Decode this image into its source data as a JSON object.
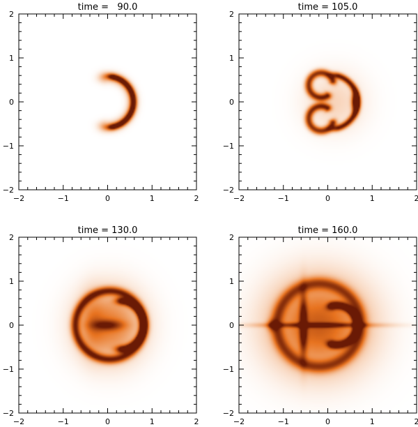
{
  "figure": {
    "colormap": {
      "low": "#ffffff",
      "mid": "#e8731f",
      "high": "#6a1a05"
    }
  },
  "chart_data": [
    {
      "type": "heatmap",
      "title": "time =   90.0",
      "xlim": [
        -2,
        2
      ],
      "ylim": [
        -2,
        2
      ],
      "x_major_ticks": [
        -2,
        -1,
        0,
        1,
        2
      ],
      "y_major_ticks": [
        -2,
        -1,
        0,
        1,
        2
      ],
      "tick_labels_x": [
        "−2",
        "−1",
        "0",
        "1",
        "2"
      ],
      "tick_labels_y": [
        "−2",
        "−1",
        "0",
        "1",
        "2"
      ],
      "field": {
        "description": "thin crescent",
        "shapes": [
          {
            "kind": "ring",
            "cx": 0.0,
            "cy": 0.0,
            "r": 0.58,
            "w": 0.05,
            "amp": 0.95,
            "ang0": -75,
            "ang1": 75
          },
          {
            "kind": "ring",
            "cx": 0.0,
            "cy": 0.0,
            "r": 0.56,
            "w": 0.09,
            "amp": 0.35,
            "ang0": -95,
            "ang1": 95
          }
        ]
      }
    },
    {
      "type": "heatmap",
      "title": "time = 105.0",
      "xlim": [
        -2,
        2
      ],
      "ylim": [
        -2,
        2
      ],
      "x_major_ticks": [
        -2,
        -1,
        0,
        1,
        2
      ],
      "y_major_ticks": [
        -2,
        -1,
        0,
        1,
        2
      ],
      "tick_labels_x": [
        "−2",
        "−1",
        "0",
        "1",
        "2"
      ],
      "tick_labels_y": [
        "−2",
        "−1",
        "0",
        "1",
        "2"
      ],
      "field": {
        "description": "mushroom-shaped shell",
        "shapes": [
          {
            "kind": "ring",
            "cx": 0.05,
            "cy": 0.0,
            "r": 0.62,
            "w": 0.05,
            "amp": 0.95,
            "ang0": -70,
            "ang1": 70
          },
          {
            "kind": "ring",
            "cx": -0.15,
            "cy": 0.38,
            "r": 0.28,
            "w": 0.06,
            "amp": 0.85,
            "ang0": 20,
            "ang1": 300
          },
          {
            "kind": "ring",
            "cx": -0.15,
            "cy": -0.38,
            "r": 0.28,
            "w": 0.06,
            "amp": 0.85,
            "ang0": 60,
            "ang1": 340
          },
          {
            "kind": "blob",
            "cx": 0.62,
            "cy": 0.0,
            "sx": 0.06,
            "sy": 0.15,
            "amp": 1.0
          },
          {
            "kind": "blob",
            "cx": 0.15,
            "cy": 0.0,
            "sx": 0.45,
            "sy": 0.45,
            "amp": 0.18
          }
        ]
      }
    },
    {
      "type": "heatmap",
      "title": "time = 130.0",
      "xlim": [
        -2,
        2
      ],
      "ylim": [
        -2,
        2
      ],
      "x_major_ticks": [
        -2,
        -1,
        0,
        1,
        2
      ],
      "y_major_ticks": [
        -2,
        -1,
        0,
        1,
        2
      ],
      "tick_labels_x": [
        "−2",
        "−1",
        "0",
        "1",
        "2"
      ],
      "tick_labels_y": [
        "−2",
        "−1",
        "0",
        "1",
        "2"
      ],
      "field": {
        "description": "expanding filled shell",
        "shapes": [
          {
            "kind": "blob",
            "cx": 0.05,
            "cy": 0.0,
            "sx": 0.5,
            "sy": 0.55,
            "amp": 0.55
          },
          {
            "kind": "ring",
            "cx": 0.05,
            "cy": 0.0,
            "r": 0.78,
            "w": 0.07,
            "amp": 0.8,
            "ang0": -180,
            "ang1": 180
          },
          {
            "kind": "ring",
            "cx": 0.25,
            "cy": 0.0,
            "r": 0.55,
            "w": 0.06,
            "amp": 0.9,
            "ang0": -80,
            "ang1": 80
          },
          {
            "kind": "blob",
            "cx": 0.0,
            "cy": 0.0,
            "sx": 0.25,
            "sy": 0.08,
            "amp": 0.5
          },
          {
            "kind": "blob",
            "cx": -0.35,
            "cy": 0.05,
            "sx": 0.18,
            "sy": 0.45,
            "amp": 0.25
          }
        ]
      }
    },
    {
      "type": "heatmap",
      "title": "time = 160.0",
      "xlim": [
        -2,
        2
      ],
      "ylim": [
        -2,
        2
      ],
      "x_major_ticks": [
        -2,
        -1,
        0,
        1,
        2
      ],
      "y_major_ticks": [
        -2,
        -1,
        0,
        1,
        2
      ],
      "tick_labels_x": [
        "−2",
        "−1",
        "0",
        "1",
        "2"
      ],
      "tick_labels_y": [
        "−2",
        "−1",
        "0",
        "1",
        "2"
      ],
      "field": {
        "description": "large turbulent cloud",
        "shapes": [
          {
            "kind": "blob",
            "cx": -0.2,
            "cy": 0.0,
            "sx": 0.75,
            "sy": 0.72,
            "amp": 0.7
          },
          {
            "kind": "ring",
            "cx": -0.2,
            "cy": 0.0,
            "r": 0.95,
            "w": 0.1,
            "amp": 0.6,
            "ang0": -180,
            "ang1": 180
          },
          {
            "kind": "ring",
            "cx": 0.2,
            "cy": 0.0,
            "r": 0.45,
            "w": 0.06,
            "amp": 0.9,
            "ang0": -100,
            "ang1": 100
          },
          {
            "kind": "blob",
            "cx": -0.55,
            "cy": 0.0,
            "sx": 0.06,
            "sy": 0.5,
            "amp": 0.7
          },
          {
            "kind": "blob",
            "cx": -0.2,
            "cy": 0.0,
            "sx": 0.9,
            "sy": 0.04,
            "amp": 0.55
          },
          {
            "kind": "blob",
            "cx": -1.25,
            "cy": 0.0,
            "sx": 0.08,
            "sy": 0.09,
            "amp": 0.45
          }
        ]
      }
    }
  ]
}
